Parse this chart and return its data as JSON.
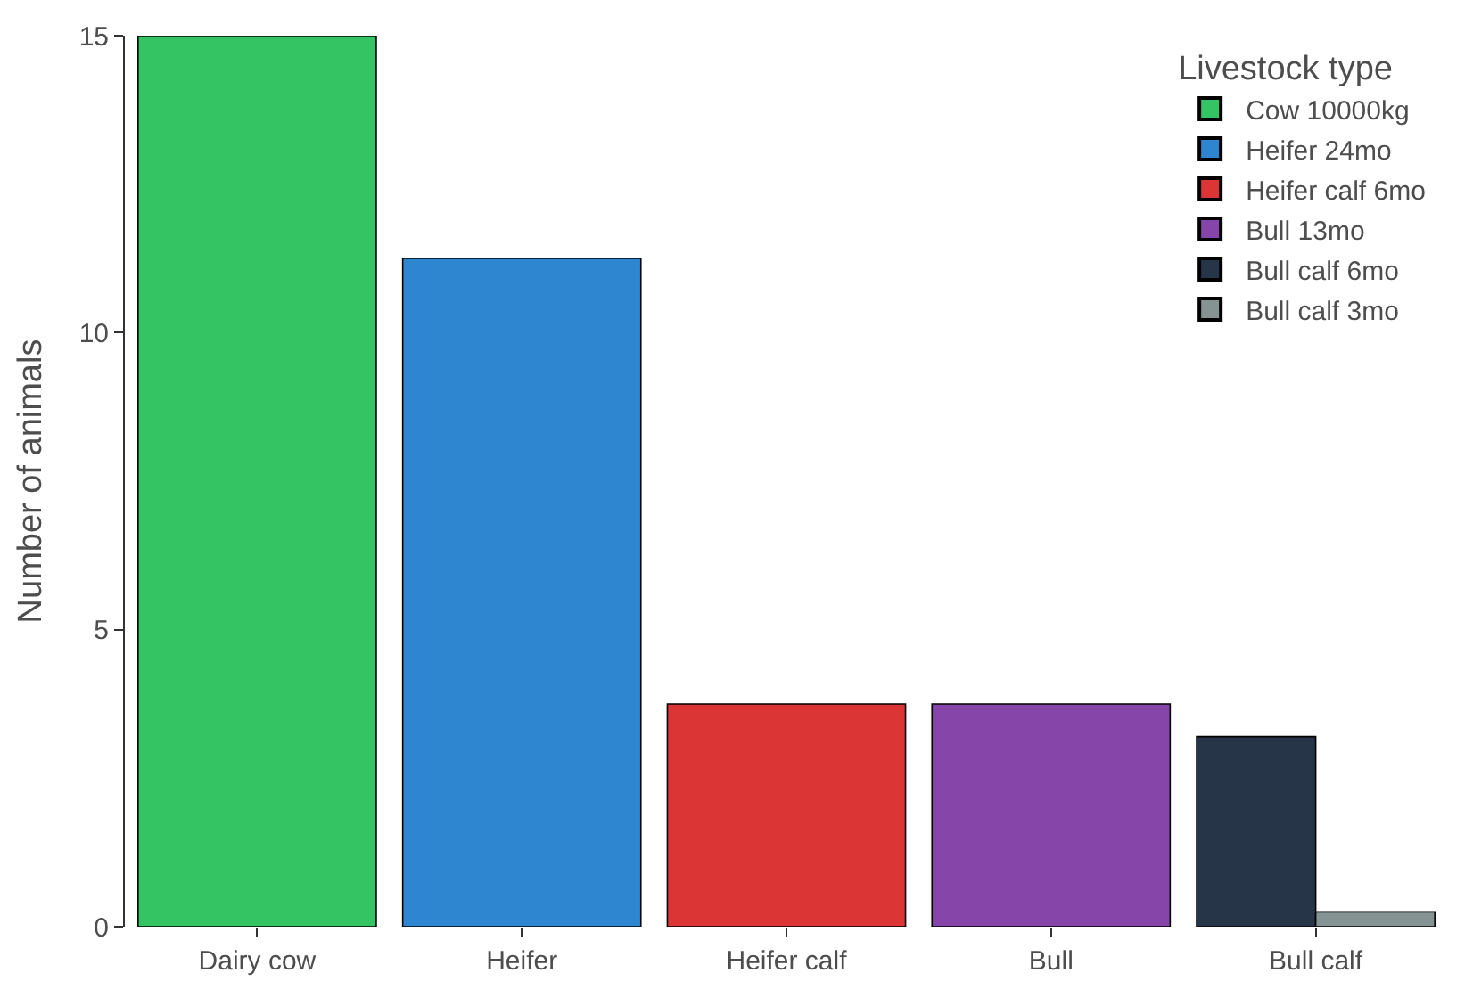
{
  "chart_data": {
    "type": "bar",
    "ylabel": "Number of animals",
    "legend_title": "Livestock type",
    "categories": [
      "Dairy cow",
      "Heifer",
      "Heifer calf",
      "Bull",
      "Bull calf"
    ],
    "series": [
      {
        "name": "Cow 10000kg",
        "color": "#35c463",
        "values": [
          15,
          null,
          null,
          null,
          null
        ]
      },
      {
        "name": "Heifer 24mo",
        "color": "#2e86d0",
        "values": [
          null,
          11.25,
          null,
          null,
          null
        ]
      },
      {
        "name": "Heifer calf 6mo",
        "color": "#dc3535",
        "values": [
          null,
          null,
          3.75,
          null,
          null
        ]
      },
      {
        "name": "Bull 13mo",
        "color": "#8645a8",
        "values": [
          null,
          null,
          null,
          3.75,
          null
        ]
      },
      {
        "name": "Bull calf 6mo",
        "color": "#263648",
        "values": [
          null,
          null,
          null,
          null,
          3.2
        ]
      },
      {
        "name": "Bull calf 3mo",
        "color": "#859393",
        "values": [
          null,
          null,
          null,
          null,
          0.25
        ]
      }
    ],
    "ylim": [
      0,
      15
    ],
    "yticks": [
      0,
      5,
      10,
      15
    ],
    "legend": "top right"
  }
}
